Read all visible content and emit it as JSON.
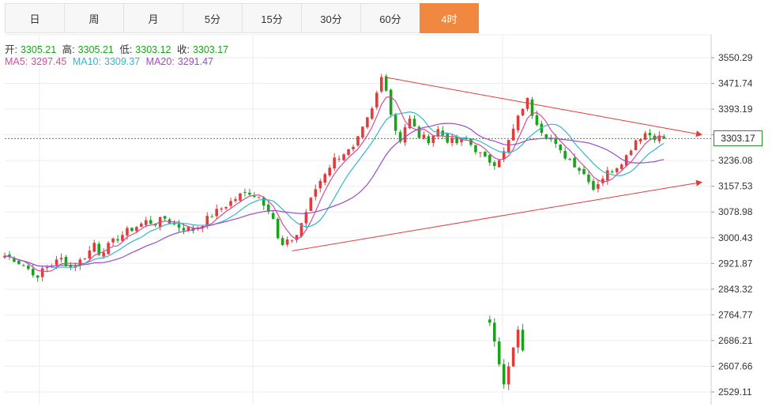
{
  "tabs": [
    {
      "label": "日",
      "active": false
    },
    {
      "label": "周",
      "active": false
    },
    {
      "label": "月",
      "active": false
    },
    {
      "label": "5分",
      "active": false
    },
    {
      "label": "15分",
      "active": false
    },
    {
      "label": "30分",
      "active": false
    },
    {
      "label": "60分",
      "active": false
    },
    {
      "label": "4时",
      "active": true
    }
  ],
  "info": {
    "open_label": "开:",
    "open": "3305.21",
    "high_label": "高:",
    "high": "3305.21",
    "low_label": "低:",
    "low": "3303.12",
    "close_label": "收:",
    "close": "3303.17",
    "ma5_label": "MA5:",
    "ma5": "3297.45",
    "ma10_label": "MA10:",
    "ma10": "3309.37",
    "ma20_label": "MA20:",
    "ma20": "3291.47"
  },
  "current_price": "3303.17",
  "colors": {
    "up": "#e23b3b",
    "down": "#1aa31a",
    "ma5": "#d24c9a",
    "ma10": "#35b7c7",
    "ma20": "#9b4bc8",
    "trend": "#e23b3b",
    "accent": "#f0883f"
  },
  "chart_data": {
    "type": "candlestick",
    "y_ticks": [
      "3550.29",
      "3471.74",
      "3393.19",
      "3314.64",
      "3236.08",
      "3157.53",
      "3078.98",
      "3000.43",
      "2921.87",
      "2843.32",
      "2764.77",
      "2686.21",
      "2607.66",
      "2529.11"
    ],
    "ylim": [
      2529.11,
      3550.29
    ],
    "grid": true,
    "close_path": [
      [
        0,
        2945
      ],
      [
        2,
        2935
      ],
      [
        4,
        2915
      ],
      [
        6,
        2895
      ],
      [
        7,
        2870
      ],
      [
        8,
        2905
      ],
      [
        10,
        2920
      ],
      [
        12,
        2935
      ],
      [
        14,
        2910
      ],
      [
        16,
        2930
      ],
      [
        18,
        2960
      ],
      [
        19,
        2985
      ],
      [
        20,
        2955
      ],
      [
        22,
        2975
      ],
      [
        24,
        3000
      ],
      [
        26,
        3020
      ],
      [
        28,
        3035
      ],
      [
        30,
        3050
      ],
      [
        32,
        3045
      ],
      [
        34,
        3060
      ],
      [
        36,
        3040
      ],
      [
        38,
        3030
      ],
      [
        40,
        3025
      ],
      [
        42,
        3045
      ],
      [
        44,
        3070
      ],
      [
        46,
        3090
      ],
      [
        48,
        3110
      ],
      [
        50,
        3130
      ],
      [
        52,
        3140
      ],
      [
        54,
        3125
      ],
      [
        56,
        3090
      ],
      [
        57,
        3060
      ],
      [
        58,
        2995
      ],
      [
        59,
        2975
      ],
      [
        60,
        2985
      ],
      [
        62,
        3010
      ],
      [
        64,
        3080
      ],
      [
        66,
        3150
      ],
      [
        68,
        3200
      ],
      [
        70,
        3240
      ],
      [
        72,
        3260
      ],
      [
        74,
        3270
      ],
      [
        76,
        3330
      ],
      [
        78,
        3390
      ],
      [
        79,
        3440
      ],
      [
        80,
        3490
      ],
      [
        81,
        3460
      ],
      [
        82,
        3380
      ],
      [
        83,
        3330
      ],
      [
        84,
        3300
      ],
      [
        85,
        3340
      ],
      [
        86,
        3360
      ],
      [
        88,
        3310
      ],
      [
        90,
        3300
      ],
      [
        92,
        3330
      ],
      [
        94,
        3300
      ],
      [
        96,
        3290
      ],
      [
        98,
        3300
      ],
      [
        100,
        3270
      ],
      [
        102,
        3240
      ],
      [
        104,
        3230
      ],
      [
        106,
        3260
      ],
      [
        108,
        3330
      ],
      [
        110,
        3400
      ],
      [
        111,
        3420
      ],
      [
        112,
        3380
      ],
      [
        114,
        3330
      ],
      [
        116,
        3300
      ],
      [
        118,
        3260
      ],
      [
        120,
        3240
      ],
      [
        122,
        3210
      ],
      [
        124,
        3180
      ],
      [
        125,
        3150
      ],
      [
        126,
        3170
      ],
      [
        128,
        3200
      ],
      [
        130,
        3220
      ],
      [
        132,
        3250
      ],
      [
        134,
        3300
      ],
      [
        136,
        3320
      ],
      [
        138,
        3310
      ],
      [
        140,
        3303.17
      ]
    ],
    "gap_segment": [
      [
        103,
        2750
      ],
      [
        104,
        2680
      ],
      [
        105,
        2610
      ],
      [
        106,
        2560
      ],
      [
        107,
        2600
      ],
      [
        108,
        2660
      ],
      [
        109,
        2710
      ],
      [
        110,
        2660
      ]
    ],
    "trendlines": [
      {
        "from": [
          81,
          3490
        ],
        "to": [
          148,
          3315
        ]
      },
      {
        "from": [
          61,
          2960
        ],
        "to": [
          148,
          3170
        ]
      }
    ]
  }
}
